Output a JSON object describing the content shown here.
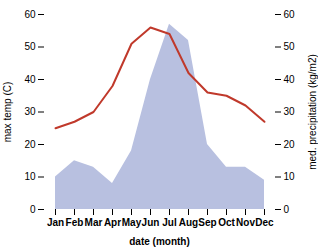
{
  "chart_data": {
    "type": "line",
    "categories": [
      "Jan",
      "Feb",
      "Mar",
      "Apr",
      "May",
      "Jun",
      "Jul",
      "Aug",
      "Sep",
      "Oct",
      "Nov",
      "Dec"
    ],
    "series": [
      {
        "type": "area",
        "axis": "y2",
        "color": "#b8c0e0",
        "values": [
          10,
          15,
          13,
          8,
          18,
          40,
          57,
          52,
          20,
          13,
          13,
          9
        ]
      },
      {
        "type": "line",
        "color": "#c0392b",
        "values": [
          25,
          27,
          30,
          38,
          51,
          56,
          54,
          42,
          36,
          35,
          32,
          27
        ]
      }
    ],
    "xlabel": "date (month)",
    "ylabel": "max temp (C)",
    "y2label": "med. precipitation (kg/m2)",
    "ylim": [
      0,
      60
    ],
    "yticks": [
      0,
      10,
      20,
      30,
      40,
      50,
      60
    ],
    "y2lim": [
      0,
      60
    ],
    "y2ticks": [
      0,
      10,
      20,
      30,
      40,
      50,
      60
    ],
    "grid": false
  }
}
